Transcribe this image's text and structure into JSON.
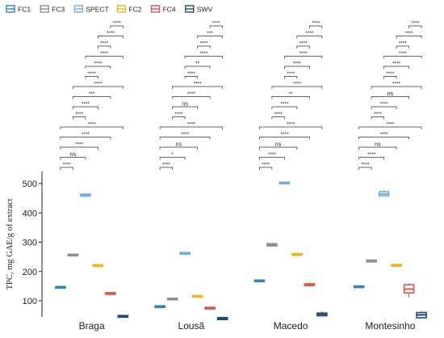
{
  "chart_data": {
    "type": "boxplot",
    "title": "",
    "xlabel": "",
    "ylabel": "TPC, mg GAE/g of extract",
    "ylim": [
      40,
      515
    ],
    "yticks": [
      100,
      200,
      300,
      400,
      500
    ],
    "legend_position": "top-left",
    "grid": false,
    "categories": [
      "Braga",
      "Lousã",
      "Macedo",
      "Montesinho"
    ],
    "series": [
      {
        "name": "FC1",
        "color": "#2f83c2",
        "boxes": [
          {
            "q1": 145,
            "median": 146,
            "q3": 147,
            "min": 144,
            "max": 148
          },
          {
            "q1": 79,
            "median": 80,
            "q3": 81,
            "min": 78,
            "max": 82
          },
          {
            "q1": 167,
            "median": 168,
            "q3": 169,
            "min": 166,
            "max": 170
          },
          {
            "q1": 146,
            "median": 148,
            "q3": 150,
            "min": 145,
            "max": 151
          }
        ]
      },
      {
        "name": "FC3",
        "color": "#8e8e8e",
        "boxes": [
          {
            "q1": 254,
            "median": 256,
            "q3": 258,
            "min": 252,
            "max": 259
          },
          {
            "q1": 104,
            "median": 106,
            "q3": 108,
            "min": 103,
            "max": 110
          },
          {
            "q1": 287,
            "median": 291,
            "q3": 295,
            "min": 284,
            "max": 297
          },
          {
            "q1": 233,
            "median": 236,
            "q3": 239,
            "min": 231,
            "max": 241
          }
        ]
      },
      {
        "name": "SPECT",
        "color": "#72addf",
        "boxes": [
          {
            "q1": 457,
            "median": 460,
            "q3": 464,
            "min": 455,
            "max": 466
          },
          {
            "q1": 260,
            "median": 262,
            "q3": 264,
            "min": 259,
            "max": 265
          },
          {
            "q1": 501,
            "median": 502,
            "q3": 503,
            "min": 500,
            "max": 504
          },
          {
            "q1": 458,
            "median": 464,
            "q3": 472,
            "min": 455,
            "max": 478
          }
        ]
      },
      {
        "name": "FC2",
        "color": "#f2b21a",
        "boxes": [
          {
            "q1": 218,
            "median": 220,
            "q3": 222,
            "min": 216,
            "max": 224
          },
          {
            "q1": 114,
            "median": 115,
            "q3": 116,
            "min": 113,
            "max": 117
          },
          {
            "q1": 256,
            "median": 258,
            "q3": 260,
            "min": 254,
            "max": 261
          },
          {
            "q1": 220,
            "median": 221,
            "q3": 222,
            "min": 219,
            "max": 223
          }
        ]
      },
      {
        "name": "FC4",
        "color": "#e0534f",
        "boxes": [
          {
            "q1": 124,
            "median": 125,
            "q3": 126,
            "min": 123,
            "max": 127
          },
          {
            "q1": 74,
            "median": 75,
            "q3": 76,
            "min": 73,
            "max": 77
          },
          {
            "q1": 152,
            "median": 155,
            "q3": 158,
            "min": 150,
            "max": 160
          },
          {
            "q1": 127,
            "median": 140,
            "q3": 155,
            "min": 112,
            "max": 160
          }
        ]
      },
      {
        "name": "SWV",
        "color": "#1f4a7a",
        "boxes": [
          {
            "q1": 44,
            "median": 47,
            "q3": 50,
            "min": 42,
            "max": 52
          },
          {
            "q1": 36,
            "median": 40,
            "q3": 43,
            "min": 33,
            "max": 45
          },
          {
            "q1": 49,
            "median": 54,
            "q3": 58,
            "min": 47,
            "max": 63
          },
          {
            "q1": 42,
            "median": 52,
            "q3": 60,
            "min": 40,
            "max": 64
          }
        ]
      }
    ],
    "significance_labels": [
      [
        "****",
        "****",
        "****",
        "****",
        "****",
        "****",
        "****",
        "***",
        "****",
        "****",
        "****",
        "****",
        "****",
        "ns",
        "****"
      ],
      [
        "****",
        "***",
        "****",
        "****",
        "**",
        "****",
        "****",
        "****",
        "ns",
        "****",
        "****",
        "****",
        "ns",
        "*",
        "****"
      ],
      [
        "****",
        "****",
        "****",
        "****",
        "****",
        "****",
        "****",
        "**",
        "****",
        "****",
        "****",
        "****",
        "ns",
        "****",
        "****"
      ],
      [
        "****",
        "****",
        "****",
        "****",
        "****",
        "****",
        "****",
        "ns",
        "****",
        "****",
        "****",
        "****",
        "ns",
        "****",
        "****"
      ]
    ]
  }
}
